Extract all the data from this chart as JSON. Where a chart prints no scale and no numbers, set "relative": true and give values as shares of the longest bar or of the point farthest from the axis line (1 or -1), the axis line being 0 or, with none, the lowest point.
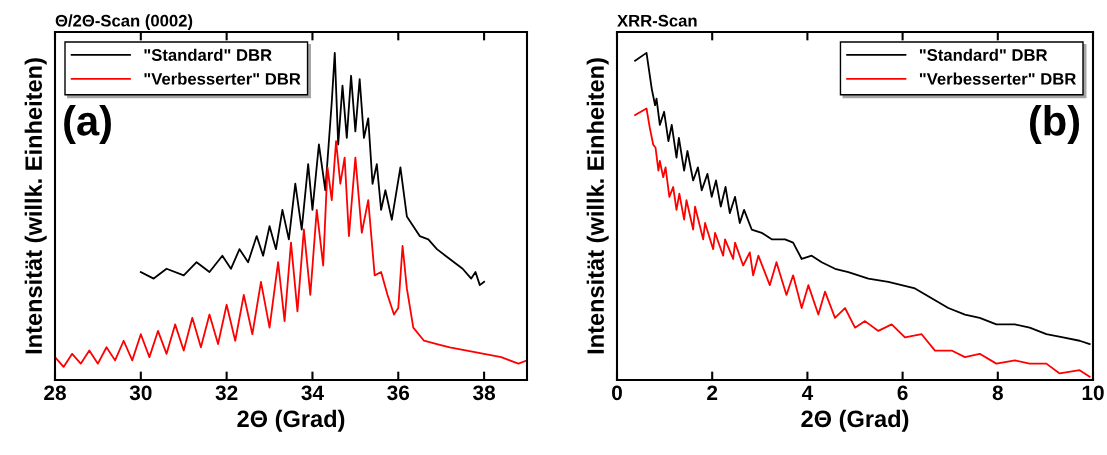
{
  "chart_data": [
    {
      "type": "line",
      "title": "Θ/2Θ-Scan (0002)",
      "xlabel": "2Θ (Grad)",
      "ylabel": "Intensität (willk. Einheiten)",
      "relative": true,
      "xlim": [
        28,
        39
      ],
      "xticks": [
        28,
        30,
        32,
        34,
        36,
        38
      ],
      "legend": "top left",
      "annotations": [
        "(a)"
      ],
      "series": [
        {
          "name": "\"Standard\" DBR",
          "color": "#000000",
          "x": [
            30.0,
            30.3,
            30.6,
            31.0,
            31.3,
            31.6,
            31.9,
            32.1,
            32.3,
            32.5,
            32.7,
            32.85,
            33.0,
            33.15,
            33.3,
            33.45,
            33.6,
            33.75,
            33.9,
            34.0,
            34.15,
            34.3,
            34.45,
            34.52,
            34.6,
            34.7,
            34.8,
            34.9,
            35.0,
            35.1,
            35.2,
            35.3,
            35.4,
            35.5,
            35.6,
            35.7,
            35.85,
            36.05,
            36.2,
            36.35,
            36.5,
            36.7,
            36.9,
            37.1,
            37.3,
            37.5,
            37.7,
            37.8,
            37.9,
            38.0
          ],
          "values": [
            0.33,
            0.31,
            0.34,
            0.32,
            0.36,
            0.33,
            0.38,
            0.34,
            0.4,
            0.36,
            0.44,
            0.38,
            0.47,
            0.4,
            0.52,
            0.43,
            0.6,
            0.46,
            0.66,
            0.52,
            0.72,
            0.58,
            0.85,
            1.0,
            0.72,
            0.9,
            0.74,
            0.93,
            0.76,
            0.92,
            0.74,
            0.8,
            0.6,
            0.66,
            0.52,
            0.58,
            0.49,
            0.65,
            0.5,
            0.47,
            0.44,
            0.43,
            0.4,
            0.38,
            0.36,
            0.34,
            0.31,
            0.33,
            0.29,
            0.3
          ]
        },
        {
          "name": "\"Verbesserter\" DBR",
          "color": "#ff0000",
          "x": [
            28.0,
            28.2,
            28.4,
            28.6,
            28.8,
            29.0,
            29.2,
            29.4,
            29.6,
            29.8,
            30.0,
            30.2,
            30.4,
            30.6,
            30.8,
            31.0,
            31.2,
            31.4,
            31.6,
            31.8,
            32.0,
            32.2,
            32.4,
            32.6,
            32.8,
            33.0,
            33.2,
            33.35,
            33.5,
            33.65,
            33.8,
            33.95,
            34.1,
            34.25,
            34.35,
            34.45,
            34.55,
            34.65,
            34.75,
            34.85,
            35.0,
            35.15,
            35.3,
            35.45,
            35.6,
            35.75,
            35.9,
            36.0,
            36.1,
            36.2,
            36.35,
            36.6,
            36.9,
            37.2,
            37.6,
            38.0,
            38.4,
            38.8,
            39.0
          ],
          "values": [
            0.07,
            0.04,
            0.08,
            0.05,
            0.09,
            0.05,
            0.1,
            0.06,
            0.12,
            0.06,
            0.14,
            0.07,
            0.15,
            0.08,
            0.17,
            0.09,
            0.19,
            0.1,
            0.2,
            0.11,
            0.23,
            0.12,
            0.26,
            0.14,
            0.3,
            0.16,
            0.36,
            0.18,
            0.42,
            0.21,
            0.46,
            0.26,
            0.52,
            0.35,
            0.65,
            0.55,
            0.73,
            0.6,
            0.68,
            0.44,
            0.68,
            0.45,
            0.55,
            0.32,
            0.33,
            0.26,
            0.2,
            0.22,
            0.41,
            0.28,
            0.16,
            0.12,
            0.11,
            0.1,
            0.09,
            0.08,
            0.07,
            0.05,
            0.06
          ]
        }
      ]
    },
    {
      "type": "line",
      "title": "XRR-Scan",
      "xlabel": "2Θ (Grad)",
      "ylabel": "Intensität (willk. Einheiten)",
      "relative": true,
      "xlim": [
        0,
        10
      ],
      "xticks": [
        0,
        2,
        4,
        6,
        8,
        10
      ],
      "legend": "top right",
      "annotations": [
        "(b)"
      ],
      "series": [
        {
          "name": "\"Standard\" DBR",
          "color": "#000000",
          "x": [
            0.38,
            0.62,
            0.73,
            0.8,
            0.83,
            0.9,
            0.99,
            1.08,
            1.15,
            1.25,
            1.3,
            1.41,
            1.48,
            1.6,
            1.7,
            1.78,
            1.9,
            1.99,
            2.08,
            2.18,
            2.28,
            2.37,
            2.48,
            2.58,
            2.67,
            2.83,
            3.04,
            3.25,
            3.53,
            3.7,
            3.88,
            4.09,
            4.3,
            4.58,
            4.86,
            5.28,
            5.7,
            5.98,
            6.26,
            6.61,
            6.96,
            7.31,
            7.62,
            7.97,
            8.36,
            8.67,
            9.02,
            9.37,
            9.72,
            9.93
          ],
          "values": [
            0.976,
            1.0,
            0.89,
            0.84,
            0.86,
            0.78,
            0.82,
            0.73,
            0.78,
            0.68,
            0.74,
            0.64,
            0.7,
            0.61,
            0.65,
            0.58,
            0.63,
            0.56,
            0.61,
            0.53,
            0.59,
            0.51,
            0.56,
            0.48,
            0.52,
            0.46,
            0.45,
            0.43,
            0.43,
            0.42,
            0.37,
            0.38,
            0.36,
            0.34,
            0.33,
            0.31,
            0.3,
            0.29,
            0.28,
            0.25,
            0.22,
            0.2,
            0.19,
            0.17,
            0.17,
            0.16,
            0.14,
            0.13,
            0.12,
            0.11
          ]
        },
        {
          "name": "\"Verbesserter\" DBR",
          "color": "#ff0000",
          "x": [
            0.38,
            0.62,
            0.69,
            0.76,
            0.81,
            0.87,
            0.9,
            0.97,
            1.02,
            1.1,
            1.18,
            1.25,
            1.31,
            1.41,
            1.46,
            1.6,
            1.64,
            1.81,
            1.85,
            2.02,
            2.06,
            2.23,
            2.27,
            2.44,
            2.48,
            2.65,
            2.79,
            2.86,
            2.97,
            3.21,
            3.35,
            3.56,
            3.7,
            3.88,
            4.02,
            4.23,
            4.37,
            4.58,
            4.79,
            5.0,
            5.21,
            5.49,
            5.77,
            6.05,
            6.4,
            6.68,
            7.03,
            7.31,
            7.62,
            7.97,
            8.36,
            8.67,
            9.02,
            9.3,
            9.72,
            9.93
          ],
          "values": [
            0.81,
            0.83,
            0.77,
            0.72,
            0.71,
            0.64,
            0.67,
            0.62,
            0.65,
            0.56,
            0.59,
            0.52,
            0.57,
            0.49,
            0.55,
            0.46,
            0.53,
            0.43,
            0.48,
            0.4,
            0.45,
            0.38,
            0.43,
            0.37,
            0.42,
            0.35,
            0.39,
            0.32,
            0.38,
            0.29,
            0.36,
            0.26,
            0.32,
            0.22,
            0.29,
            0.2,
            0.27,
            0.19,
            0.22,
            0.16,
            0.18,
            0.15,
            0.17,
            0.13,
            0.14,
            0.09,
            0.09,
            0.07,
            0.08,
            0.05,
            0.06,
            0.05,
            0.05,
            0.02,
            0.03,
            0.01
          ]
        }
      ]
    }
  ]
}
